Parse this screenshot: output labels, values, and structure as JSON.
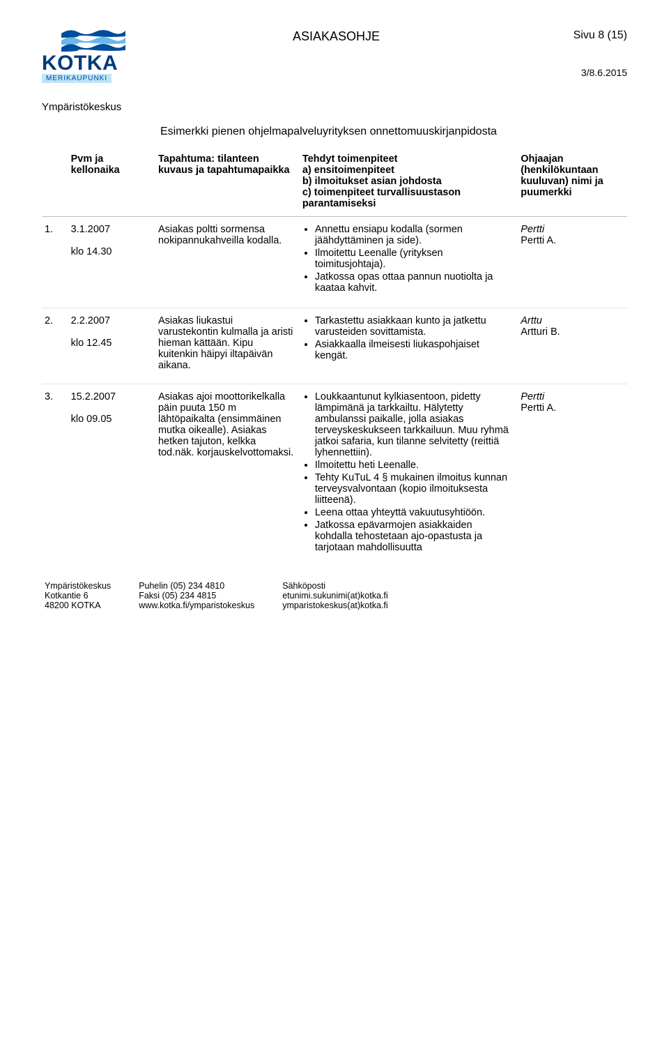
{
  "header": {
    "logo_text": "KOTKA",
    "logo_subtext": "MERIKAUPUNKI",
    "doc_title": "ASIAKASOHJE",
    "page_label": "Sivu 8 (15)",
    "doc_date": "3/8.6.2015",
    "department": "Ympäristökeskus",
    "wave_colors": [
      "#004c9e",
      "#6bb7e8",
      "#004c9e"
    ]
  },
  "section_title": "Esimerkki pienen ohjelmapalveluyrityksen onnettomuuskirjanpidosta",
  "table": {
    "headers": {
      "num": "",
      "pvm": "Pvm ja kellonaika",
      "tapahtuma": "Tapahtuma: tilanteen kuvaus ja tapahtumapaikka",
      "toimenpiteet": "Tehdyt toimenpiteet\na) ensitoimenpiteet\nb) ilmoitukset asian johdosta\nc) toimenpiteet turvallisuustason parantamiseksi",
      "ohjaaja": "Ohjaajan (henkilökuntaan kuuluvan) nimi ja puumerkki"
    },
    "rows": [
      {
        "num": "1.",
        "date": "3.1.2007",
        "time": "klo 14.30",
        "event": "Asiakas poltti sormensa nokipannukahveilla kodalla.",
        "actions": [
          "Annettu ensiapu kodalla (sormen jäähdyttäminen ja side).",
          "Ilmoitettu Leenalle (yrityksen toimitusjohtaja).",
          "Jatkossa opas ottaa pannun nuotiolta ja kaataa kahvit."
        ],
        "guide_name": "Pertti",
        "guide_sig": "Pertti A."
      },
      {
        "num": "2.",
        "date": "2.2.2007",
        "time": "klo 12.45",
        "event": "Asiakas liukastui varustekontin kulmalla ja aristi hieman kättään. Kipu kuitenkin häipyi iltapäivän aikana.",
        "actions": [
          "Tarkastettu asiakkaan kunto ja jatkettu varusteiden sovittamista.",
          "Asiakkaalla ilmeisesti liukaspohjaiset kengät."
        ],
        "guide_name": "Arttu",
        "guide_sig": "Artturi B."
      },
      {
        "num": "3.",
        "date": "15.2.2007",
        "time": "klo 09.05",
        "event": "Asiakas ajoi moottorikelkalla päin puuta 150 m lähtöpaikalta (ensimmäinen mutka oikealle). Asiakas hetken tajuton, kelkka tod.näk. korjauskelvottomaksi.",
        "actions": [
          "Loukkaantunut kylkiasentoon, pidetty lämpimänä ja tarkkailtu. Hälytetty ambulanssi paikalle, jolla asiakas terveyskeskukseen tarkkailuun. Muu ryhmä jatkoi safaria, kun tilanne selvitetty (reittiä lyhennettiin).",
          "Ilmoitettu heti Leenalle.",
          "Tehty KuTuL 4 § mukainen ilmoitus kunnan terveysvalvontaan (kopio ilmoituksesta liitteenä).",
          "Leena ottaa yhteyttä vakuutusyhtiöön.",
          "Jatkossa epävarmojen asiakkaiden kohdalla tehostetaan ajo-opastusta ja tarjotaan mahdollisuutta"
        ],
        "guide_name": "Pertti",
        "guide_sig": "Pertti A."
      }
    ]
  },
  "footer": {
    "col1": [
      "Ympäristökeskus",
      "Kotkantie 6",
      "48200 KOTKA"
    ],
    "col2": [
      "Puhelin (05) 234 4810",
      "Faksi (05) 234 4815",
      "www.kotka.fi/ymparistokeskus"
    ],
    "col3": [
      "Sähköposti",
      "etunimi.sukunimi(at)kotka.fi",
      "ymparistokeskus(at)kotka.fi"
    ]
  }
}
